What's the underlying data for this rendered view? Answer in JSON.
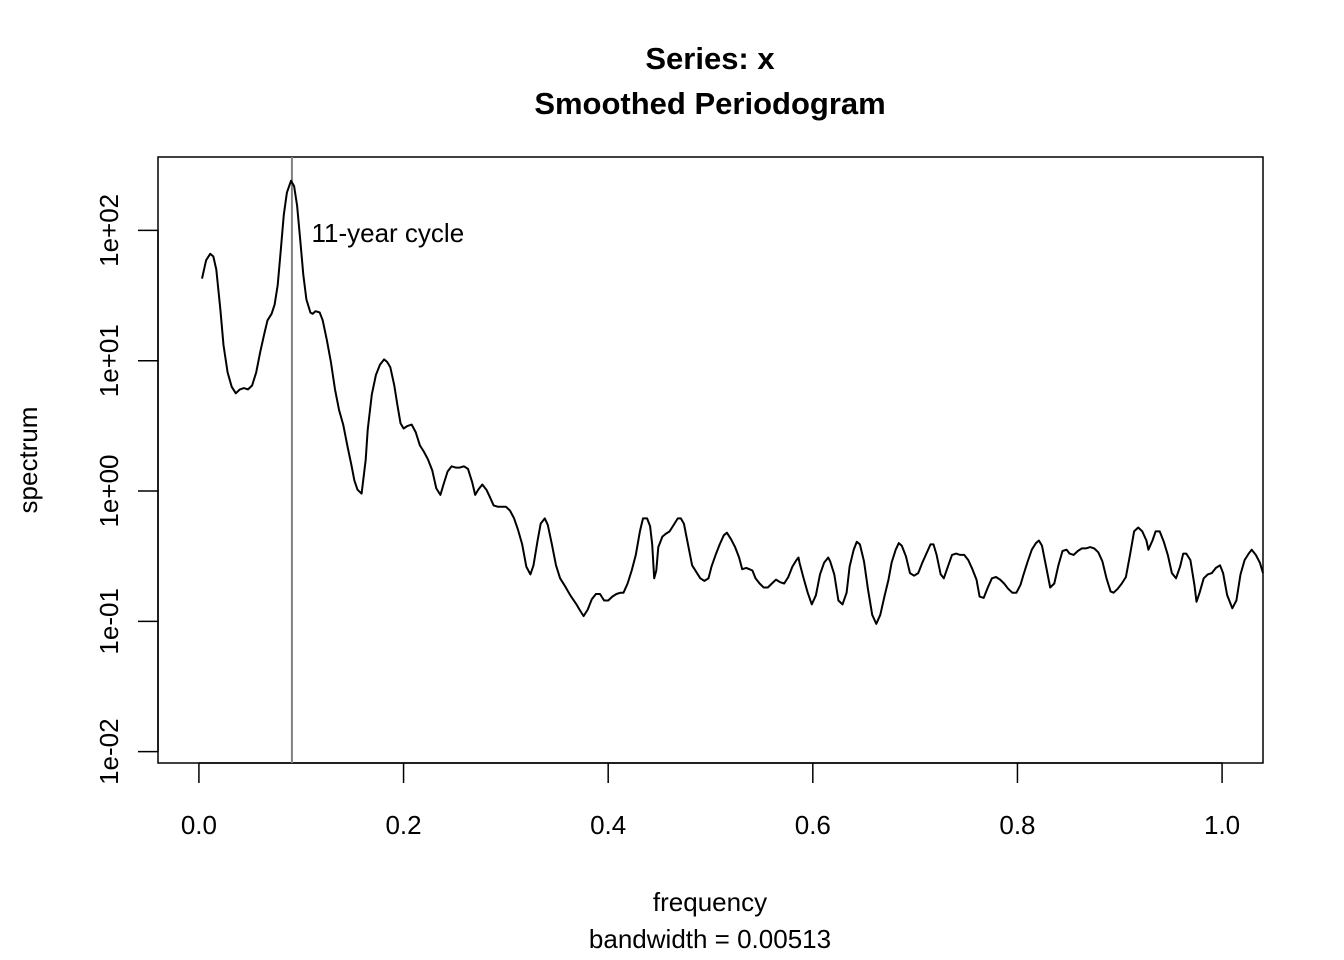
{
  "chart_data": {
    "type": "line",
    "title": "Series: x",
    "subtitle": "Smoothed Periodogram",
    "xlabel": "frequency",
    "sublabel": "bandwidth = 0.00513",
    "ylabel": "spectrum",
    "y_scale": "log10",
    "xlim": [
      -0.04,
      1.04
    ],
    "ylim_log10": [
      -2.087,
      2.563
    ],
    "x_ticks": [
      0.0,
      0.2,
      0.4,
      0.6,
      0.8,
      1.0
    ],
    "x_tick_labels": [
      "0.0",
      "0.2",
      "0.4",
      "0.6",
      "0.8",
      "1.0"
    ],
    "y_ticks_log10": [
      -2,
      -1,
      0,
      1,
      2
    ],
    "y_tick_labels": [
      "1e-02",
      "1e-01",
      "1e+00",
      "1e+01",
      "1e+02"
    ],
    "grid": false,
    "line_color": "#000000",
    "annotation": {
      "text": "11-year cycle",
      "x": 0.11,
      "log10_y": 1.98
    },
    "vline": {
      "x": 0.0909,
      "color": "#808080"
    },
    "x": [
      0.003,
      0.007,
      0.011,
      0.014,
      0.017,
      0.021,
      0.024,
      0.028,
      0.032,
      0.036,
      0.04,
      0.044,
      0.048,
      0.052,
      0.056,
      0.06,
      0.064,
      0.067,
      0.071,
      0.074,
      0.077,
      0.08,
      0.083,
      0.086,
      0.09,
      0.093,
      0.096,
      0.099,
      0.102,
      0.105,
      0.109,
      0.111,
      0.114,
      0.118,
      0.121,
      0.125,
      0.129,
      0.133,
      0.137,
      0.141,
      0.145,
      0.149,
      0.152,
      0.155,
      0.159,
      0.163,
      0.165,
      0.169,
      0.173,
      0.177,
      0.181,
      0.184,
      0.187,
      0.191,
      0.194,
      0.197,
      0.2,
      0.204,
      0.208,
      0.212,
      0.216,
      0.22,
      0.224,
      0.228,
      0.232,
      0.236,
      0.239,
      0.243,
      0.247,
      0.251,
      0.255,
      0.259,
      0.263,
      0.267,
      0.27,
      0.273,
      0.277,
      0.281,
      0.284,
      0.288,
      0.292,
      0.296,
      0.3,
      0.304,
      0.308,
      0.312,
      0.316,
      0.32,
      0.324,
      0.327,
      0.331,
      0.334,
      0.338,
      0.341,
      0.345,
      0.349,
      0.353,
      0.357,
      0.363,
      0.369,
      0.372,
      0.376,
      0.38,
      0.384,
      0.388,
      0.392,
      0.396,
      0.4,
      0.404,
      0.408,
      0.412,
      0.415,
      0.419,
      0.423,
      0.427,
      0.431,
      0.434,
      0.438,
      0.441,
      0.443,
      0.445,
      0.447,
      0.449,
      0.453,
      0.456,
      0.46,
      0.464,
      0.468,
      0.471,
      0.474,
      0.478,
      0.482,
      0.486,
      0.49,
      0.494,
      0.498,
      0.501,
      0.505,
      0.509,
      0.513,
      0.516,
      0.52,
      0.524,
      0.528,
      0.531,
      0.535,
      0.538,
      0.541,
      0.544,
      0.548,
      0.552,
      0.556,
      0.56,
      0.564,
      0.568,
      0.572,
      0.576,
      0.58,
      0.584,
      0.586,
      0.587,
      0.591,
      0.595,
      0.599,
      0.603,
      0.607,
      0.611,
      0.615,
      0.617,
      0.621,
      0.625,
      0.629,
      0.633,
      0.636,
      0.64,
      0.643,
      0.646,
      0.65,
      0.654,
      0.658,
      0.662,
      0.666,
      0.67,
      0.674,
      0.677,
      0.681,
      0.684,
      0.687,
      0.691,
      0.695,
      0.699,
      0.703,
      0.707,
      0.711,
      0.715,
      0.718,
      0.721,
      0.725,
      0.728,
      0.732,
      0.736,
      0.74,
      0.744,
      0.748,
      0.752,
      0.756,
      0.76,
      0.763,
      0.767,
      0.771,
      0.775,
      0.779,
      0.783,
      0.787,
      0.791,
      0.795,
      0.799,
      0.803,
      0.806,
      0.81,
      0.814,
      0.818,
      0.821,
      0.824,
      0.828,
      0.832,
      0.836,
      0.84,
      0.844,
      0.848,
      0.851,
      0.855,
      0.859,
      0.863,
      0.867,
      0.871,
      0.875,
      0.879,
      0.883,
      0.887,
      0.891,
      0.894,
      0.898,
      0.902,
      0.906,
      0.91,
      0.914,
      0.918,
      0.922,
      0.926,
      0.928,
      0.932,
      0.935,
      0.939,
      0.943,
      0.947,
      0.951,
      0.955,
      0.959,
      0.962,
      0.965,
      0.969,
      0.973,
      0.975,
      0.978,
      0.982,
      0.986,
      0.99,
      0.994,
      0.998,
      1.001,
      1.005,
      1.01,
      1.014,
      1.018,
      1.022,
      1.026,
      1.029,
      1.033,
      1.037,
      1.04
    ],
    "log10_y": [
      1.63,
      1.77,
      1.82,
      1.8,
      1.7,
      1.39,
      1.12,
      0.91,
      0.8,
      0.75,
      0.78,
      0.79,
      0.78,
      0.81,
      0.91,
      1.07,
      1.21,
      1.31,
      1.36,
      1.43,
      1.58,
      1.85,
      2.12,
      2.29,
      2.38,
      2.34,
      2.19,
      1.93,
      1.66,
      1.47,
      1.37,
      1.36,
      1.38,
      1.37,
      1.31,
      1.16,
      0.99,
      0.78,
      0.62,
      0.51,
      0.35,
      0.2,
      0.08,
      0.01,
      -0.02,
      0.24,
      0.47,
      0.74,
      0.89,
      0.97,
      1.01,
      0.99,
      0.95,
      0.81,
      0.66,
      0.52,
      0.48,
      0.5,
      0.51,
      0.45,
      0.35,
      0.3,
      0.24,
      0.16,
      0.02,
      -0.03,
      0.05,
      0.15,
      0.19,
      0.18,
      0.18,
      0.19,
      0.17,
      0.07,
      -0.03,
      0.01,
      0.05,
      0.01,
      -0.04,
      -0.11,
      -0.12,
      -0.12,
      -0.12,
      -0.15,
      -0.21,
      -0.3,
      -0.41,
      -0.58,
      -0.64,
      -0.57,
      -0.38,
      -0.25,
      -0.21,
      -0.26,
      -0.41,
      -0.57,
      -0.67,
      -0.72,
      -0.8,
      -0.87,
      -0.91,
      -0.96,
      -0.91,
      -0.83,
      -0.79,
      -0.79,
      -0.84,
      -0.84,
      -0.81,
      -0.79,
      -0.78,
      -0.78,
      -0.71,
      -0.61,
      -0.49,
      -0.31,
      -0.21,
      -0.21,
      -0.27,
      -0.41,
      -0.67,
      -0.61,
      -0.43,
      -0.35,
      -0.33,
      -0.31,
      -0.26,
      -0.21,
      -0.21,
      -0.25,
      -0.41,
      -0.57,
      -0.62,
      -0.67,
      -0.69,
      -0.67,
      -0.58,
      -0.49,
      -0.41,
      -0.34,
      -0.32,
      -0.37,
      -0.43,
      -0.51,
      -0.6,
      -0.59,
      -0.6,
      -0.61,
      -0.67,
      -0.71,
      -0.74,
      -0.74,
      -0.71,
      -0.68,
      -0.7,
      -0.71,
      -0.66,
      -0.58,
      -0.53,
      -0.51,
      -0.55,
      -0.67,
      -0.78,
      -0.87,
      -0.8,
      -0.64,
      -0.55,
      -0.51,
      -0.54,
      -0.64,
      -0.84,
      -0.87,
      -0.78,
      -0.58,
      -0.45,
      -0.39,
      -0.41,
      -0.54,
      -0.76,
      -0.95,
      -1.02,
      -0.95,
      -0.81,
      -0.68,
      -0.55,
      -0.45,
      -0.4,
      -0.42,
      -0.5,
      -0.63,
      -0.65,
      -0.63,
      -0.55,
      -0.48,
      -0.41,
      -0.41,
      -0.49,
      -0.64,
      -0.67,
      -0.58,
      -0.49,
      -0.48,
      -0.49,
      -0.49,
      -0.53,
      -0.6,
      -0.68,
      -0.81,
      -0.82,
      -0.74,
      -0.67,
      -0.66,
      -0.68,
      -0.71,
      -0.75,
      -0.78,
      -0.78,
      -0.72,
      -0.64,
      -0.54,
      -0.45,
      -0.4,
      -0.38,
      -0.42,
      -0.58,
      -0.74,
      -0.71,
      -0.57,
      -0.46,
      -0.45,
      -0.48,
      -0.49,
      -0.46,
      -0.44,
      -0.44,
      -0.43,
      -0.44,
      -0.47,
      -0.54,
      -0.67,
      -0.77,
      -0.78,
      -0.75,
      -0.71,
      -0.66,
      -0.49,
      -0.31,
      -0.28,
      -0.31,
      -0.38,
      -0.45,
      -0.38,
      -0.31,
      -0.31,
      -0.39,
      -0.49,
      -0.63,
      -0.67,
      -0.58,
      -0.48,
      -0.48,
      -0.53,
      -0.72,
      -0.85,
      -0.78,
      -0.67,
      -0.64,
      -0.63,
      -0.59,
      -0.57,
      -0.63,
      -0.8,
      -0.9,
      -0.84,
      -0.64,
      -0.53,
      -0.48,
      -0.45,
      -0.49,
      -0.55,
      -0.63
    ]
  }
}
